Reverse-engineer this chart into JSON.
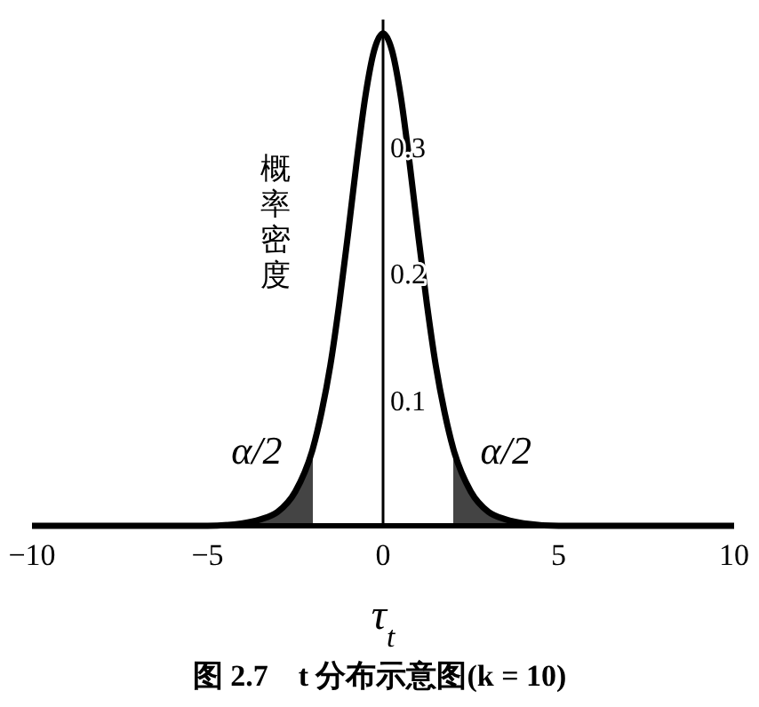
{
  "chart_data": {
    "type": "line",
    "title": "图 2.7　t 分布示意图(k = 10)",
    "xlabel": "τ$_{t}$",
    "ylabel": "概率密度",
    "xlim": [
      -10,
      10
    ],
    "ylim": [
      0,
      0.4
    ],
    "xticks": [
      -10,
      -5,
      0,
      5,
      10
    ],
    "yticks": [
      0.1,
      0.2,
      0.3
    ],
    "grid": false,
    "series": [
      {
        "type": "area",
        "color": "#444444",
        "x": [
          -10,
          -8,
          -6,
          -5,
          -4,
          -3.5,
          -3,
          -2.5,
          -2
        ],
        "values": [
          0,
          0,
          0,
          0,
          0.002,
          0.005,
          0.011,
          0.027,
          0.061
        ]
      },
      {
        "type": "area",
        "color": "#444444",
        "x": [
          2,
          2.5,
          3,
          3.5,
          4,
          5,
          6,
          8,
          10
        ],
        "values": [
          0.061,
          0.027,
          0.011,
          0.005,
          0.002,
          0,
          0,
          0,
          0
        ]
      },
      {
        "color": "#000000",
        "x": [
          -10,
          -8,
          -6,
          -5,
          -4,
          -3.5,
          -3,
          -2.5,
          -2,
          -1.75,
          -1.5,
          -1.25,
          -1,
          -0.75,
          -0.5,
          -0.25,
          0,
          0.25,
          0.5,
          0.75,
          1,
          1.25,
          1.5,
          1.75,
          2,
          2.5,
          3,
          3.5,
          4,
          5,
          6,
          8,
          10
        ],
        "values": [
          0,
          0,
          0,
          0,
          0.002,
          0.005,
          0.011,
          0.027,
          0.061,
          0.09,
          0.127,
          0.175,
          0.23,
          0.288,
          0.34,
          0.376,
          0.389,
          0.376,
          0.34,
          0.288,
          0.23,
          0.175,
          0.127,
          0.09,
          0.061,
          0.027,
          0.011,
          0.005,
          0.002,
          0,
          0,
          0,
          0
        ]
      }
    ],
    "annotations": [
      "α/2",
      "α/2"
    ]
  }
}
